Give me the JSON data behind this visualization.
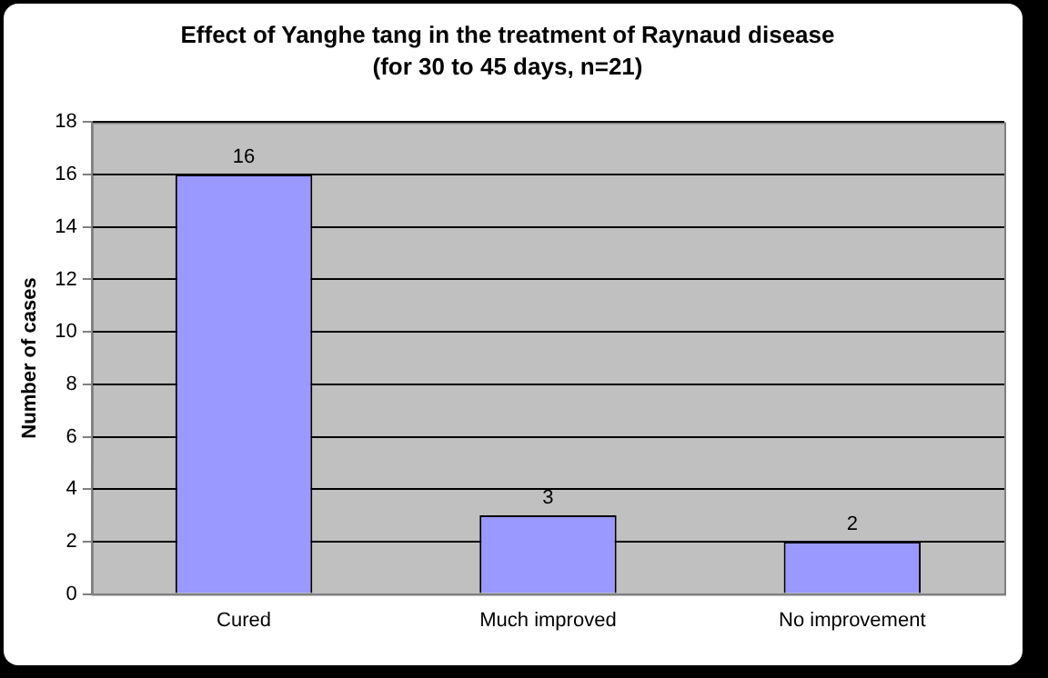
{
  "chart_data": {
    "type": "bar",
    "title": "Effect of Yanghe tang in the treatment of Raynaud disease",
    "subtitle": "(for 30 to 45 days, n=21)",
    "ylabel": "Number of cases",
    "categories": [
      "Cured",
      "Much improved",
      "No improvement"
    ],
    "values": [
      16,
      3,
      2
    ],
    "color": "#9999ff",
    "ylim": [
      0,
      18
    ],
    "yticks": [
      0,
      2,
      4,
      6,
      8,
      10,
      12,
      14,
      16,
      18
    ],
    "grid": "y",
    "data_labels": true,
    "legend": false
  }
}
